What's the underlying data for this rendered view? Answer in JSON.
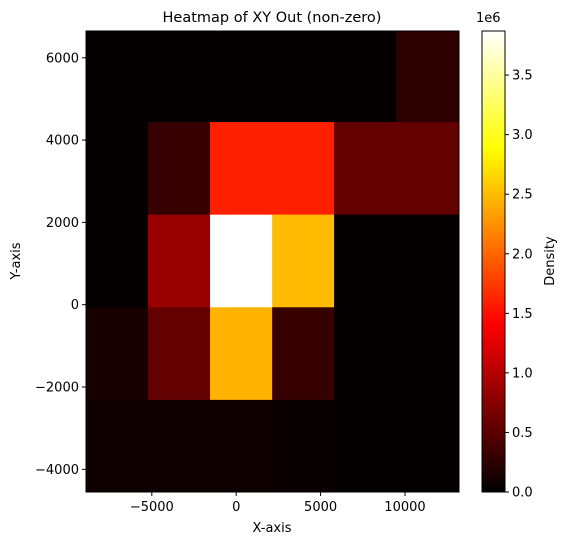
{
  "chart_data": {
    "type": "heatmap",
    "title": "Heatmap of XY Out (non-zero)",
    "xlabel": "X-axis",
    "ylabel": "Y-axis",
    "xlim": [
      -8900,
      13200
    ],
    "ylim": [
      -4550,
      6650
    ],
    "x_edges": [
      -8900,
      -5230,
      -1550,
      2130,
      5800,
      9480,
      13200
    ],
    "y_edges": [
      -4550,
      -2300,
      -50,
      2200,
      4450,
      6650
    ],
    "z": [
      [
        0.08,
        0.08,
        0.08,
        0.05,
        0.02,
        0.02
      ],
      [
        0.13,
        0.55,
        2.45,
        0.3,
        0.03,
        0.02
      ],
      [
        0.03,
        0.85,
        3.87,
        2.5,
        0.03,
        0.02
      ],
      [
        0.03,
        0.3,
        1.6,
        1.6,
        0.55,
        0.55
      ],
      [
        0.03,
        0.03,
        0.03,
        0.03,
        0.03,
        0.25
      ]
    ],
    "x_ticks": [
      {
        "value": -5000,
        "label": "−5000"
      },
      {
        "value": 0,
        "label": "0"
      },
      {
        "value": 5000,
        "label": "5000"
      },
      {
        "value": 10000,
        "label": "10000"
      }
    ],
    "y_ticks": [
      {
        "value": -4000,
        "label": "−4000"
      },
      {
        "value": -2000,
        "label": "−2000"
      },
      {
        "value": 0,
        "label": "0"
      },
      {
        "value": 2000,
        "label": "2000"
      },
      {
        "value": 4000,
        "label": "4000"
      },
      {
        "value": 6000,
        "label": "6000"
      }
    ],
    "colorbar": {
      "label": "Density",
      "scale_label": "1e6",
      "colormap": "hot",
      "vmin": 0,
      "vmax": 3.87,
      "ticks": [
        {
          "value": 0.0,
          "label": "0.0"
        },
        {
          "value": 0.5,
          "label": "0.5"
        },
        {
          "value": 1.0,
          "label": "1.0"
        },
        {
          "value": 1.5,
          "label": "1.5"
        },
        {
          "value": 2.0,
          "label": "2.0"
        },
        {
          "value": 2.5,
          "label": "2.5"
        },
        {
          "value": 3.0,
          "label": "3.0"
        },
        {
          "value": 3.5,
          "label": "3.5"
        }
      ]
    },
    "grid": false
  }
}
